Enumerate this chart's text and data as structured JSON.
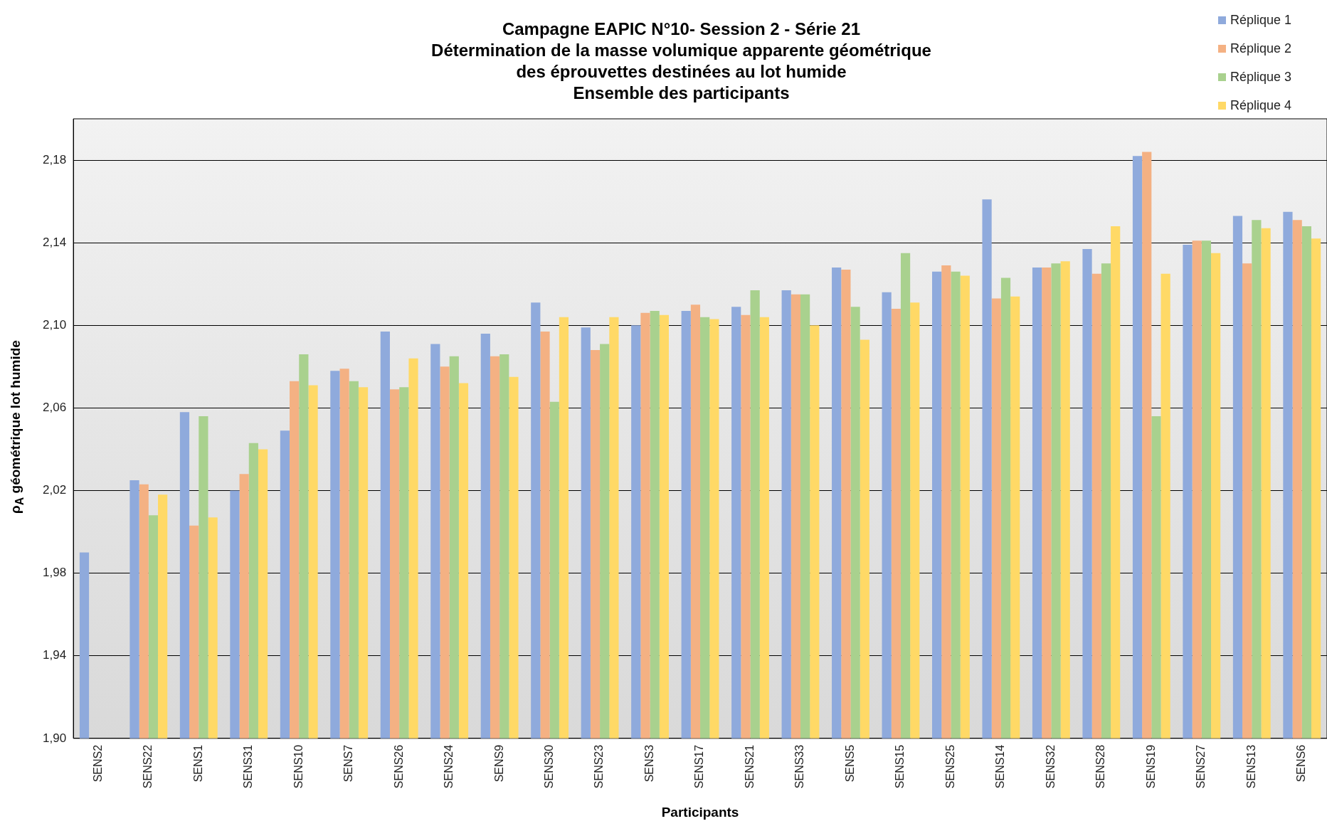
{
  "chart_data": {
    "type": "bar",
    "title": "Campagne EAPIC N°10- Session 2 - Série 21\nDétermination de la masse volumique apparente géométrique\ndes éprouvettes destinées au lot humide\nEnsemble des participants",
    "xlabel": "Participants",
    "ylabel": "ρ$_{A}$ géométrique lot humide",
    "categories": [
      "SENS2",
      "SENS22",
      "SENS1",
      "SENS31",
      "SENS10",
      "SENS7",
      "SENS26",
      "SENS24",
      "SENS9",
      "SENS30",
      "SENS23",
      "SENS3",
      "SENS17",
      "SENS21",
      "SENS33",
      "SENS5",
      "SENS15",
      "SENS25",
      "SENS14",
      "SENS32",
      "SENS28",
      "SENS19",
      "SENS27",
      "SENS13",
      "SENS6"
    ],
    "series": [
      {
        "name": "Réplique 1",
        "color": "#8faadc",
        "values": [
          1.99,
          2.025,
          2.058,
          2.02,
          2.049,
          2.078,
          2.097,
          2.091,
          2.096,
          2.111,
          2.099,
          2.1,
          2.107,
          2.109,
          2.117,
          2.128,
          2.116,
          2.126,
          2.161,
          2.128,
          2.137,
          2.182,
          2.139,
          2.153,
          2.155
        ]
      },
      {
        "name": "Réplique 2",
        "color": "#f4b183",
        "values": [
          null,
          2.023,
          2.003,
          2.028,
          2.073,
          2.079,
          2.069,
          2.08,
          2.085,
          2.097,
          2.088,
          2.106,
          2.11,
          2.105,
          2.115,
          2.127,
          2.108,
          2.129,
          2.113,
          2.128,
          2.125,
          2.184,
          2.141,
          2.13,
          2.151
        ]
      },
      {
        "name": "Réplique 3",
        "color": "#a9d18e",
        "values": [
          null,
          2.008,
          2.056,
          2.043,
          2.086,
          2.073,
          2.07,
          2.085,
          2.086,
          2.063,
          2.091,
          2.107,
          2.104,
          2.117,
          2.115,
          2.109,
          2.135,
          2.126,
          2.123,
          2.13,
          2.13,
          2.056,
          2.141,
          2.151,
          2.148
        ]
      },
      {
        "name": "Réplique 4",
        "color": "#ffd966",
        "values": [
          null,
          2.018,
          2.007,
          2.04,
          2.071,
          2.07,
          2.084,
          2.072,
          2.075,
          2.104,
          2.104,
          2.105,
          2.103,
          2.104,
          2.1,
          2.093,
          2.111,
          2.124,
          2.114,
          2.131,
          2.148,
          2.125,
          2.135,
          2.147,
          2.142
        ]
      }
    ],
    "ylim": [
      1.9,
      2.2
    ],
    "yticks": [
      {
        "value": 1.9,
        "label": "1,90"
      },
      {
        "value": 1.94,
        "label": "1,94"
      },
      {
        "value": 1.98,
        "label": "1,98"
      },
      {
        "value": 2.02,
        "label": "2,02"
      },
      {
        "value": 2.06,
        "label": "2,06"
      },
      {
        "value": 2.1,
        "label": "2,10"
      },
      {
        "value": 2.14,
        "label": "2,14"
      },
      {
        "value": 2.18,
        "label": "2,18"
      }
    ],
    "grid": "y",
    "legend": "top right"
  }
}
